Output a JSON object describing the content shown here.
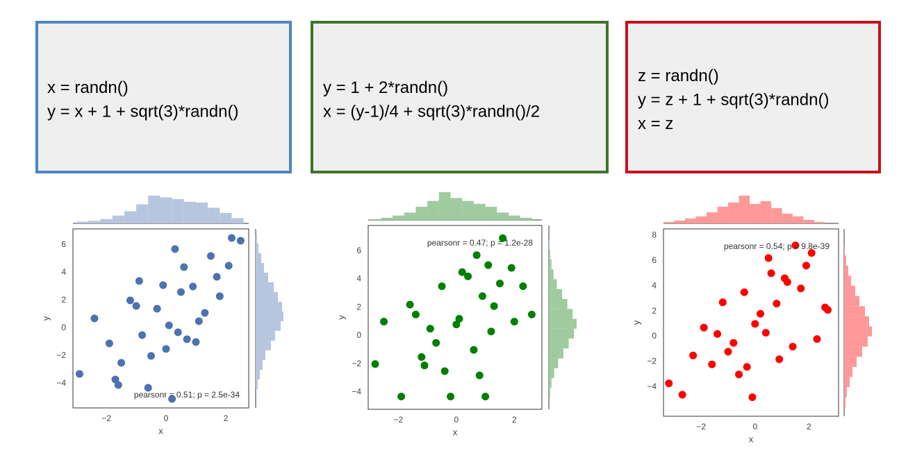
{
  "boxes": [
    {
      "color": "#4a86c5",
      "lines": [
        "x = randn()",
        "y = x + 1 + sqrt(3)*randn()"
      ]
    },
    {
      "color": "#3f7429",
      "lines": [
        "y = 1 + 2*randn()",
        "x = (y-1)/4 + sqrt(3)*randn()/2"
      ]
    },
    {
      "color": "#c8101e",
      "lines": [
        "z = randn()",
        "y = z + 1 + sqrt(3)*randn()",
        "x = z"
      ]
    }
  ],
  "chart_data": [
    {
      "type": "scatter",
      "xlabel": "x",
      "ylabel": "y",
      "annotation": "pearsonr = 0.51; p = 2.5e-34",
      "annotation_loc": "lower right",
      "color": "#4c72b0",
      "hist_color": "#b7c6df",
      "xlim": [
        -3.12,
        2.77
      ],
      "ylim": [
        -5.75,
        7.15
      ],
      "xticks": [
        {
          "value": -2,
          "label": "−2"
        },
        0,
        2
      ],
      "yticks": [
        {
          "value": -4,
          "label": "−4"
        },
        {
          "value": -2,
          "label": "−2"
        },
        0,
        2,
        4,
        6
      ],
      "x": [
        -2.9,
        -1.7,
        -1.6,
        -0.6,
        0.2,
        -2.4,
        -1.9,
        -1.2,
        -0.8,
        -0.3,
        0.1,
        0.5,
        0.9,
        1.3,
        1.7,
        2.1,
        2.5,
        1.8,
        0.7,
        -0.1,
        -1.0,
        -1.5,
        0.3,
        1.1,
        1.5,
        -0.5,
        0.0,
        0.6,
        2.2,
        1.0,
        -0.9,
        0.4
      ],
      "y": [
        -3.3,
        -3.7,
        -4.1,
        -4.3,
        -5.1,
        0.7,
        -1.1,
        2.0,
        -0.5,
        1.4,
        0.2,
        2.6,
        3.0,
        1.1,
        3.7,
        4.5,
        6.3,
        2.3,
        -0.8,
        3.1,
        1.6,
        -2.5,
        5.7,
        0.5,
        5.2,
        -2.0,
        -1.5,
        4.4,
        6.5,
        -1.0,
        3.4,
        -0.3
      ],
      "top_hist": {
        "bins": [
          -3.0,
          -2.6,
          -2.2,
          -1.8,
          -1.4,
          -1.0,
          -0.6,
          -0.2,
          0.2,
          0.6,
          1.0,
          1.4,
          1.8,
          2.2,
          2.6
        ],
        "counts": [
          2,
          3,
          5,
          9,
          14,
          22,
          32,
          30,
          28,
          25,
          24,
          18,
          12,
          6
        ]
      },
      "right_hist": {
        "bins": [
          -4.4,
          -3.7,
          -3.0,
          -2.3,
          -1.6,
          -0.9,
          -0.2,
          0.5,
          1.2,
          1.9,
          2.6,
          3.3,
          4.0,
          4.7,
          5.4,
          6.1,
          6.8
        ],
        "counts": [
          3,
          6,
          10,
          14,
          22,
          28,
          36,
          40,
          38,
          32,
          26,
          18,
          12,
          8,
          4,
          2
        ]
      }
    },
    {
      "type": "scatter",
      "xlabel": "x",
      "ylabel": "y",
      "annotation": "pearsonr = 0.47; p = 1.2e-28",
      "annotation_loc": "upper right",
      "color": "#008000",
      "hist_color": "#9fcb9f",
      "xlim": [
        -3.04,
        2.95
      ],
      "ylim": [
        -5.2,
        7.8
      ],
      "xticks": [
        {
          "value": -2,
          "label": "−2"
        },
        0,
        2
      ],
      "yticks": [
        {
          "value": -4,
          "label": "−4"
        },
        {
          "value": -2,
          "label": "−2"
        },
        0,
        2,
        4,
        6
      ],
      "x": [
        -2.8,
        -2.5,
        -1.9,
        -1.6,
        -1.2,
        -0.9,
        -0.5,
        -0.2,
        0.1,
        0.4,
        0.7,
        1.0,
        1.3,
        1.6,
        1.9,
        2.3,
        2.6,
        0.6,
        -0.4,
        0.9,
        1.2,
        -1.1,
        0.2,
        -0.7,
        2.0,
        1.5,
        -1.4,
        0.0,
        0.8,
        1.1
      ],
      "y": [
        -2.0,
        1.0,
        -4.3,
        2.2,
        -1.5,
        0.5,
        3.5,
        -4.3,
        1.2,
        4.2,
        5.7,
        -4.3,
        2.1,
        6.9,
        4.8,
        3.5,
        1.5,
        -1.0,
        -2.5,
        2.8,
        0.3,
        -2.1,
        4.5,
        -0.5,
        1.0,
        3.7,
        1.5,
        0.8,
        -2.8,
        5.0
      ],
      "top_hist": {
        "bins": [
          -3.0,
          -2.6,
          -2.2,
          -1.8,
          -1.4,
          -1.0,
          -0.6,
          -0.2,
          0.2,
          0.6,
          1.0,
          1.4,
          1.8,
          2.2,
          2.6
        ],
        "counts": [
          1,
          3,
          6,
          10,
          18,
          26,
          38,
          30,
          26,
          22,
          18,
          10,
          6,
          3
        ]
      },
      "right_hist": {
        "bins": [
          -4.4,
          -3.7,
          -3.0,
          -2.3,
          -1.6,
          -0.9,
          -0.2,
          0.5,
          1.2,
          1.9,
          2.6,
          3.3,
          4.0,
          4.7,
          5.4,
          6.1,
          6.8
        ],
        "counts": [
          2,
          4,
          8,
          14,
          22,
          30,
          38,
          42,
          36,
          28,
          20,
          12,
          7,
          4,
          2,
          1
        ]
      }
    },
    {
      "type": "scatter",
      "xlabel": "x",
      "ylabel": "y",
      "annotation": "pearsonr = 0.54; p = 9.8e-39",
      "annotation_loc": "upper right",
      "color": "#ff0000",
      "hist_color": "#ff9999",
      "xlim": [
        -3.4,
        3.1
      ],
      "ylim": [
        -6.3,
        8.5
      ],
      "xticks": [
        {
          "value": -2,
          "label": "−2"
        },
        0,
        2
      ],
      "yticks": [
        {
          "value": -4,
          "label": "−4"
        },
        {
          "value": -2,
          "label": "−2"
        },
        0,
        2,
        4,
        6,
        8
      ],
      "x": [
        -3.2,
        -2.7,
        -2.3,
        -1.9,
        -1.6,
        -1.2,
        -0.8,
        -0.4,
        -0.1,
        0.2,
        0.5,
        0.9,
        1.2,
        1.5,
        1.9,
        2.3,
        2.7,
        0.4,
        -0.6,
        0.8,
        1.1,
        -1.0,
        0.0,
        -0.3,
        1.7,
        2.1,
        -1.4,
        0.6,
        1.4,
        2.6
      ],
      "y": [
        -3.7,
        -4.6,
        -1.5,
        0.7,
        -2.2,
        2.7,
        -0.5,
        3.5,
        -4.8,
        1.8,
        6.2,
        -1.8,
        4.3,
        7.2,
        5.6,
        -0.2,
        2.1,
        0.3,
        -3.0,
        2.6,
        4.6,
        -1.2,
        1.0,
        -2.4,
        3.8,
        6.6,
        0.2,
        5.0,
        -0.8,
        2.3
      ],
      "top_hist": {
        "bins": [
          -3.4,
          -3.0,
          -2.6,
          -2.2,
          -1.8,
          -1.4,
          -1.0,
          -0.6,
          -0.2,
          0.2,
          0.6,
          1.0,
          1.4,
          1.8,
          2.2,
          2.6
        ],
        "counts": [
          2,
          4,
          7,
          10,
          16,
          24,
          30,
          40,
          28,
          32,
          22,
          14,
          10,
          5,
          2
        ]
      },
      "right_hist": {
        "bins": [
          -5.6,
          -4.8,
          -4.0,
          -3.2,
          -2.4,
          -1.6,
          -0.8,
          0,
          0.8,
          1.6,
          2.4,
          3.2,
          4.0,
          4.8,
          5.6,
          6.4,
          7.2
        ],
        "counts": [
          2,
          4,
          8,
          12,
          18,
          26,
          34,
          40,
          36,
          30,
          22,
          16,
          10,
          6,
          3,
          1
        ]
      }
    }
  ]
}
